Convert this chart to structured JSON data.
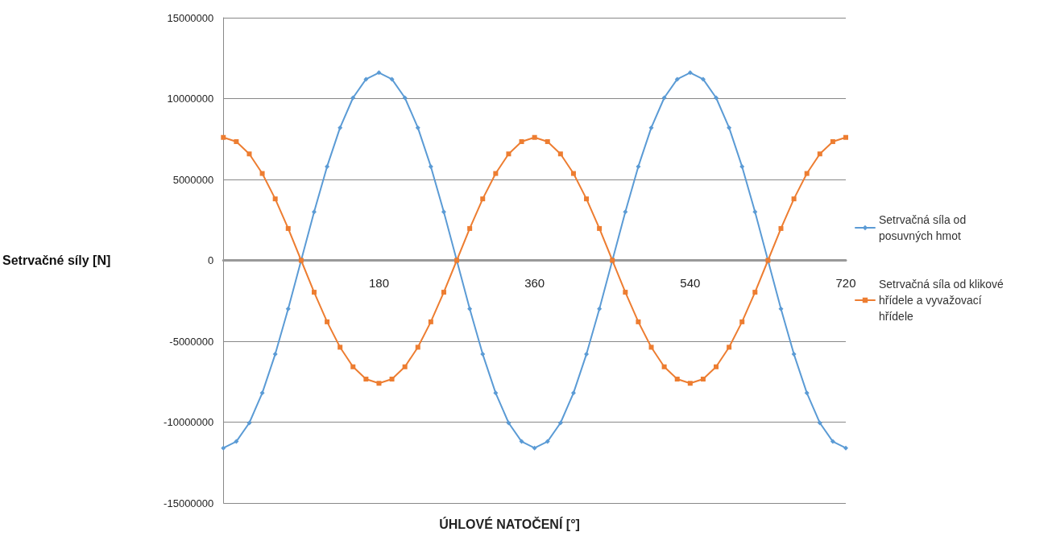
{
  "chart_data": {
    "type": "line",
    "xlabel": "ÚHLOVÉ NATOČENÍ [°]",
    "ylabel": "Setrvačné síly [N]",
    "x": [
      0,
      15,
      30,
      45,
      60,
      75,
      90,
      105,
      120,
      135,
      150,
      165,
      180,
      195,
      210,
      225,
      240,
      255,
      270,
      285,
      300,
      315,
      330,
      345,
      360,
      375,
      390,
      405,
      420,
      435,
      450,
      465,
      480,
      495,
      510,
      525,
      540,
      555,
      570,
      585,
      600,
      615,
      630,
      645,
      660,
      675,
      690,
      705,
      720
    ],
    "series": [
      {
        "name": "Setrvačná síla od posuvných hmot",
        "color": "#5b9bd5",
        "marker": "diamond",
        "values": [
          -11600000,
          -11200000,
          -10050000,
          -8200000,
          -5800000,
          -3000000,
          0,
          3000000,
          5800000,
          8200000,
          10050000,
          11200000,
          11600000,
          11200000,
          10050000,
          8200000,
          5800000,
          3000000,
          0,
          -3000000,
          -5800000,
          -8200000,
          -10050000,
          -11200000,
          -11600000,
          -11200000,
          -10050000,
          -8200000,
          -5800000,
          -3000000,
          0,
          3000000,
          5800000,
          8200000,
          10050000,
          11200000,
          11600000,
          11200000,
          10050000,
          8200000,
          5800000,
          3000000,
          0,
          -3000000,
          -5800000,
          -8200000,
          -10050000,
          -11200000,
          -11600000
        ]
      },
      {
        "name": "Setrvačná síla od klikové hřídele a vyvažovací hřídele",
        "color": "#ed7d31",
        "marker": "square",
        "values": [
          7600000,
          7340000,
          6580000,
          5370000,
          3800000,
          1970000,
          0,
          -1970000,
          -3800000,
          -5370000,
          -6580000,
          -7340000,
          -7600000,
          -7340000,
          -6580000,
          -5370000,
          -3800000,
          -1970000,
          0,
          1970000,
          3800000,
          5370000,
          6580000,
          7340000,
          7600000,
          7340000,
          6580000,
          5370000,
          3800000,
          1970000,
          0,
          -1970000,
          -3800000,
          -5370000,
          -6580000,
          -7340000,
          -7600000,
          -7340000,
          -6580000,
          -5370000,
          -3800000,
          -1970000,
          0,
          1970000,
          3800000,
          5370000,
          6580000,
          7340000,
          7600000
        ]
      }
    ],
    "xlim": [
      0,
      720
    ],
    "xticks": [
      180,
      360,
      540,
      720
    ],
    "ylim": [
      -15000000,
      15000000
    ],
    "yticks": [
      -15000000,
      -10000000,
      -5000000,
      0,
      5000000,
      10000000,
      15000000
    ],
    "grid": "y",
    "legend": "right"
  }
}
